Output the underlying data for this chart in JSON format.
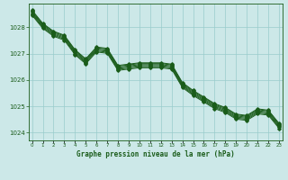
{
  "title": "Graphe pression niveau de la mer (hPa)",
  "xlabel_ticks": [
    0,
    1,
    2,
    3,
    4,
    5,
    6,
    7,
    8,
    9,
    10,
    11,
    12,
    13,
    14,
    15,
    16,
    17,
    18,
    19,
    20,
    21,
    22,
    23
  ],
  "ylim": [
    1023.7,
    1028.9
  ],
  "yticks": [
    1024,
    1025,
    1026,
    1027,
    1028
  ],
  "bg_color": "#cce8e8",
  "grid_color": "#99cccc",
  "line_color": "#1a5c1a",
  "lines": [
    [
      1028.65,
      1028.15,
      1027.85,
      1027.7,
      1027.15,
      1026.8,
      1027.25,
      1027.2,
      1026.55,
      1026.6,
      1026.65,
      1026.65,
      1026.65,
      1026.6,
      1025.9,
      1025.6,
      1025.35,
      1025.1,
      1024.95,
      1024.7,
      1024.65,
      1024.9,
      1024.85,
      1024.35
    ],
    [
      1028.62,
      1028.12,
      1027.82,
      1027.67,
      1027.12,
      1026.77,
      1027.22,
      1027.17,
      1026.52,
      1026.57,
      1026.62,
      1026.62,
      1026.62,
      1026.57,
      1025.87,
      1025.57,
      1025.32,
      1025.07,
      1024.92,
      1024.67,
      1024.62,
      1024.87,
      1024.82,
      1024.32
    ],
    [
      1028.58,
      1028.08,
      1027.78,
      1027.63,
      1027.08,
      1026.73,
      1027.18,
      1027.13,
      1026.48,
      1026.53,
      1026.58,
      1026.58,
      1026.58,
      1026.53,
      1025.83,
      1025.53,
      1025.28,
      1025.03,
      1024.88,
      1024.63,
      1024.58,
      1024.83,
      1024.78,
      1024.28
    ],
    [
      1028.54,
      1028.04,
      1027.74,
      1027.59,
      1027.04,
      1026.69,
      1027.14,
      1027.09,
      1026.44,
      1026.49,
      1026.54,
      1026.54,
      1026.54,
      1026.49,
      1025.79,
      1025.49,
      1025.24,
      1024.99,
      1024.84,
      1024.59,
      1024.54,
      1024.79,
      1024.74,
      1024.24
    ],
    [
      1028.5,
      1028.0,
      1027.7,
      1027.55,
      1027.0,
      1026.65,
      1027.1,
      1027.05,
      1026.4,
      1026.45,
      1026.5,
      1026.5,
      1026.5,
      1026.45,
      1025.75,
      1025.45,
      1025.2,
      1024.95,
      1024.8,
      1024.55,
      1024.5,
      1024.75,
      1024.7,
      1024.2
    ],
    [
      1028.46,
      1027.96,
      1027.66,
      1027.51,
      1026.96,
      1026.61,
      1027.06,
      1027.01,
      1026.36,
      1026.41,
      1026.46,
      1026.46,
      1026.46,
      1026.41,
      1025.71,
      1025.41,
      1025.16,
      1024.91,
      1024.76,
      1024.51,
      1024.46,
      1024.71,
      1024.66,
      1024.16
    ]
  ]
}
